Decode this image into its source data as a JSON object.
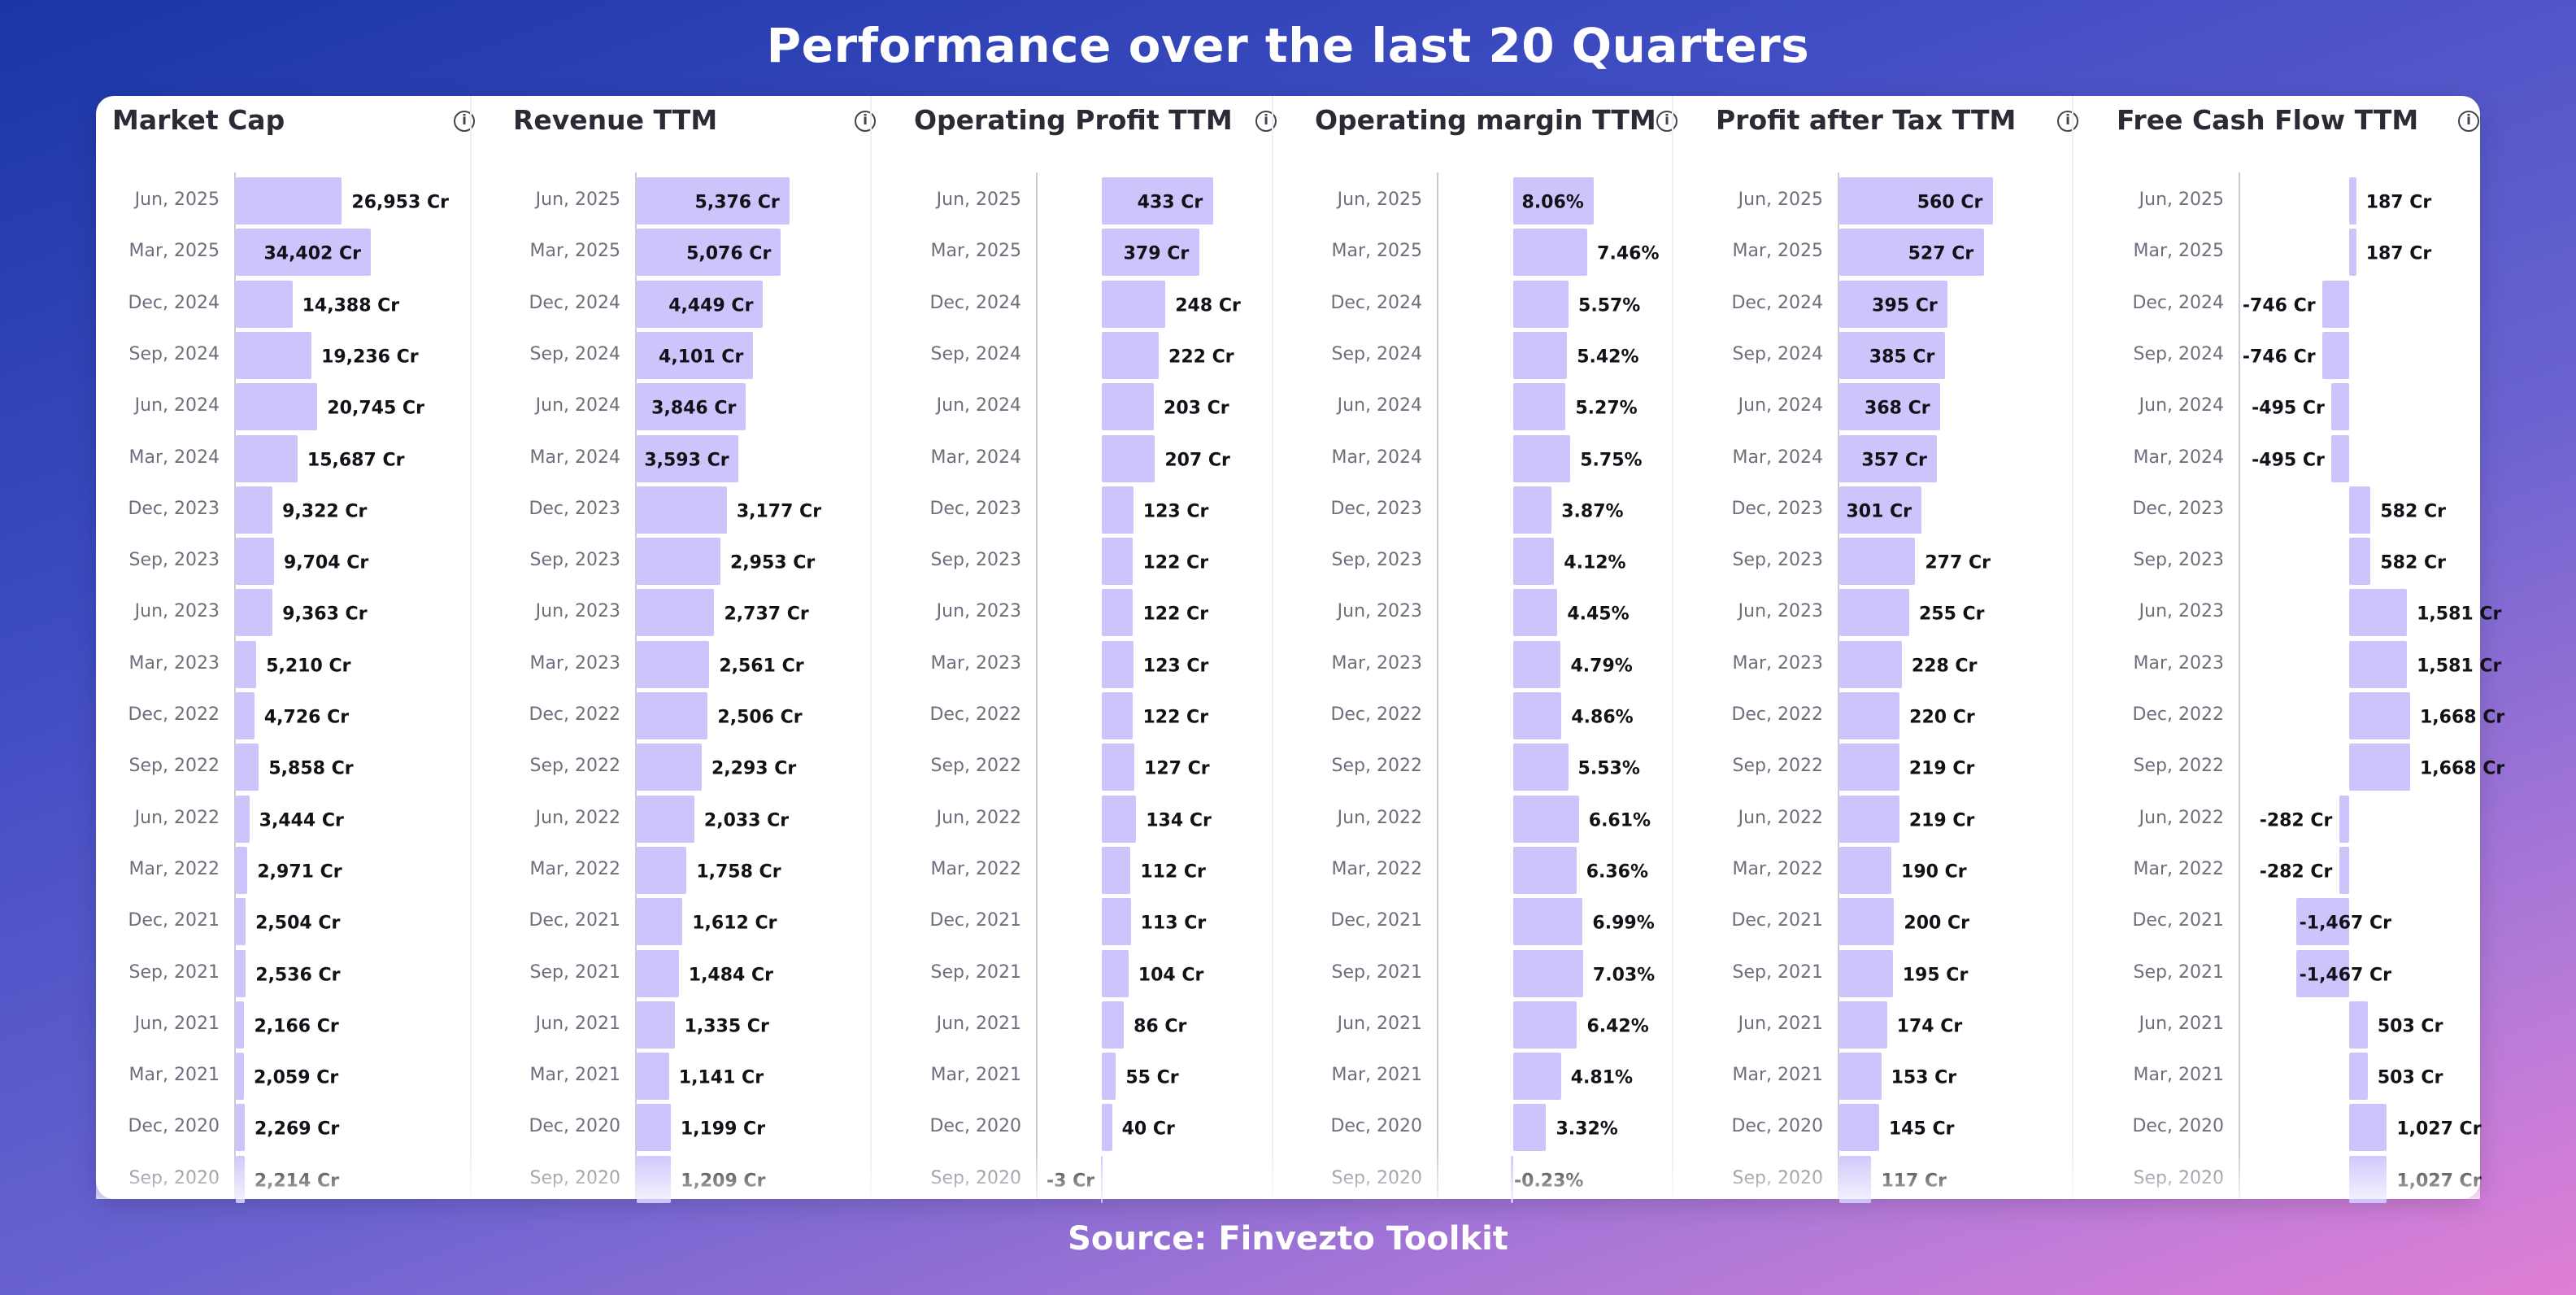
{
  "title": "Performance over the last 20 Quarters",
  "source": "Source: Finvezto Toolkit",
  "colors": {
    "bar": "#cdc4fb",
    "background_start": "#1a36a6",
    "background_end": "#e07fd6"
  },
  "chart_data": [
    {
      "type": "bar",
      "title": "Market Cap",
      "info_icon": "i",
      "categories": [
        "Jun, 2025",
        "Mar, 2025",
        "Dec, 2024",
        "Sep, 2024",
        "Jun, 2024",
        "Mar, 2024",
        "Dec, 2023",
        "Sep, 2023",
        "Jun, 2023",
        "Mar, 2023",
        "Dec, 2022",
        "Sep, 2022",
        "Jun, 2022",
        "Mar, 2022",
        "Dec, 2021",
        "Sep, 2021",
        "Jun, 2021",
        "Mar, 2021",
        "Dec, 2020",
        "Sep, 2020"
      ],
      "values": [
        26953,
        34402,
        14388,
        19236,
        20745,
        15687,
        9322,
        9704,
        9363,
        5210,
        4726,
        5858,
        3444,
        2971,
        2504,
        2536,
        2166,
        2059,
        2269,
        2214
      ],
      "labels": [
        "26,953 Cr",
        "34,402 Cr",
        "14,388 Cr",
        "19,236 Cr",
        "20,745 Cr",
        "15,687 Cr",
        "9,322 Cr",
        "9,704 Cr",
        "9,363 Cr",
        "5,210 Cr",
        "4,726 Cr",
        "5,858 Cr",
        "3,444 Cr",
        "2,971 Cr",
        "2,504 Cr",
        "2,536 Cr",
        "2,166 Cr",
        "2,059 Cr",
        "2,269 Cr",
        "2,214 Cr"
      ],
      "xlim": [
        0,
        62000
      ],
      "unit": "Cr"
    },
    {
      "type": "bar",
      "title": "Revenue TTM",
      "info_icon": "i",
      "categories": [
        "Jun, 2025",
        "Mar, 2025",
        "Dec, 2024",
        "Sep, 2024",
        "Jun, 2024",
        "Mar, 2024",
        "Dec, 2023",
        "Sep, 2023",
        "Jun, 2023",
        "Mar, 2023",
        "Dec, 2022",
        "Sep, 2022",
        "Jun, 2022",
        "Mar, 2022",
        "Dec, 2021",
        "Sep, 2021",
        "Jun, 2021",
        "Mar, 2021",
        "Dec, 2020",
        "Sep, 2020"
      ],
      "values": [
        5376,
        5076,
        4449,
        4101,
        3846,
        3593,
        3177,
        2953,
        2737,
        2561,
        2506,
        2293,
        2033,
        1758,
        1612,
        1484,
        1335,
        1141,
        1199,
        1209
      ],
      "labels": [
        "5,376 Cr",
        "5,076 Cr",
        "4,449 Cr",
        "4,101 Cr",
        "3,846 Cr",
        "3,593 Cr",
        "3,177 Cr",
        "2,953 Cr",
        "2,737 Cr",
        "2,561 Cr",
        "2,506 Cr",
        "2,293 Cr",
        "2,033 Cr",
        "1,758 Cr",
        "1,612 Cr",
        "1,484 Cr",
        "1,335 Cr",
        "1,141 Cr",
        "1,199 Cr",
        "1,209 Cr"
      ],
      "xlim": [
        0,
        8600
      ],
      "unit": "Cr"
    },
    {
      "type": "bar",
      "title": "Operating Profit TTM",
      "info_icon": "i",
      "categories": [
        "Jun, 2025",
        "Mar, 2025",
        "Dec, 2024",
        "Sep, 2024",
        "Jun, 2024",
        "Mar, 2024",
        "Dec, 2023",
        "Sep, 2023",
        "Jun, 2023",
        "Mar, 2023",
        "Dec, 2022",
        "Sep, 2022",
        "Jun, 2022",
        "Mar, 2022",
        "Dec, 2021",
        "Sep, 2021",
        "Jun, 2021",
        "Mar, 2021",
        "Dec, 2020",
        "Sep, 2020"
      ],
      "values": [
        433,
        379,
        248,
        222,
        203,
        207,
        123,
        122,
        122,
        123,
        122,
        127,
        134,
        112,
        113,
        104,
        86,
        55,
        40,
        -3
      ],
      "labels": [
        "433 Cr",
        "379 Cr",
        "248 Cr",
        "222 Cr",
        "203 Cr",
        "207 Cr",
        "123 Cr",
        "122 Cr",
        "122 Cr",
        "123 Cr",
        "122 Cr",
        "127 Cr",
        "134 Cr",
        "112 Cr",
        "113 Cr",
        "104 Cr",
        "86 Cr",
        "55 Cr",
        "40 Cr",
        "-3 Cr"
      ],
      "xlim": [
        -250,
        700
      ],
      "unit": "Cr"
    },
    {
      "type": "bar",
      "title": "Operating margin TTM",
      "info_icon": "i",
      "categories": [
        "Jun, 2025",
        "Mar, 2025",
        "Dec, 2024",
        "Sep, 2024",
        "Jun, 2024",
        "Mar, 2024",
        "Dec, 2023",
        "Sep, 2023",
        "Jun, 2023",
        "Mar, 2023",
        "Dec, 2022",
        "Sep, 2022",
        "Jun, 2022",
        "Mar, 2022",
        "Dec, 2021",
        "Sep, 2021",
        "Jun, 2021",
        "Mar, 2021",
        "Dec, 2020",
        "Sep, 2020"
      ],
      "values": [
        8.06,
        7.46,
        5.57,
        5.42,
        5.27,
        5.75,
        3.87,
        4.12,
        4.45,
        4.79,
        4.86,
        5.53,
        6.61,
        6.36,
        6.99,
        7.03,
        6.42,
        4.81,
        3.32,
        -0.23
      ],
      "labels": [
        "8.06%",
        "7.46%",
        "5.57%",
        "5.42%",
        "5.27%",
        "5.75%",
        "3.87%",
        "4.12%",
        "4.45%",
        "4.79%",
        "4.86%",
        "5.53%",
        "6.61%",
        "6.36%",
        "6.99%",
        "7.03%",
        "6.42%",
        "4.81%",
        "3.32%",
        "-0.23%"
      ],
      "xlim": [
        -7.5,
        17
      ],
      "unit": "%"
    },
    {
      "type": "bar",
      "title": "Profit after Tax TTM",
      "info_icon": "i",
      "categories": [
        "Jun, 2025",
        "Mar, 2025",
        "Dec, 2024",
        "Sep, 2024",
        "Jun, 2024",
        "Mar, 2024",
        "Dec, 2023",
        "Sep, 2023",
        "Jun, 2023",
        "Mar, 2023",
        "Dec, 2022",
        "Sep, 2022",
        "Jun, 2022",
        "Mar, 2022",
        "Dec, 2021",
        "Sep, 2021",
        "Jun, 2021",
        "Mar, 2021",
        "Dec, 2020",
        "Sep, 2020"
      ],
      "values": [
        560,
        527,
        395,
        385,
        368,
        357,
        301,
        277,
        255,
        228,
        220,
        219,
        219,
        190,
        200,
        195,
        174,
        153,
        145,
        117
      ],
      "labels": [
        "560 Cr",
        "527 Cr",
        "395 Cr",
        "385 Cr",
        "368 Cr",
        "357 Cr",
        "301 Cr",
        "277 Cr",
        "255 Cr",
        "228 Cr",
        "220 Cr",
        "219 Cr",
        "219 Cr",
        "190 Cr",
        "200 Cr",
        "195 Cr",
        "174 Cr",
        "153 Cr",
        "145 Cr",
        "117 Cr"
      ],
      "xlim": [
        0,
        890
      ],
      "unit": "Cr"
    },
    {
      "type": "bar",
      "title": "Free Cash Flow TTM",
      "info_icon": "i",
      "categories": [
        "Jun, 2025",
        "Mar, 2025",
        "Dec, 2024",
        "Sep, 2024",
        "Jun, 2024",
        "Mar, 2024",
        "Dec, 2023",
        "Sep, 2023",
        "Jun, 2023",
        "Mar, 2023",
        "Dec, 2022",
        "Sep, 2022",
        "Jun, 2022",
        "Mar, 2022",
        "Dec, 2021",
        "Sep, 2021",
        "Jun, 2021",
        "Mar, 2021",
        "Dec, 2020",
        "Sep, 2020"
      ],
      "values": [
        187,
        187,
        -746,
        -746,
        -495,
        -495,
        582,
        582,
        1581,
        1581,
        1668,
        1668,
        -282,
        -282,
        -1467,
        -1467,
        503,
        503,
        1027,
        1027
      ],
      "labels": [
        "187 Cr",
        "187 Cr",
        "-746 Cr",
        "-746 Cr",
        "-495 Cr",
        "-495 Cr",
        "582 Cr",
        "582 Cr",
        "1,581 Cr",
        "1,581 Cr",
        "1,668 Cr",
        "1,668 Cr",
        "-282 Cr",
        "-282 Cr",
        "-1,467 Cr",
        "-1,467 Cr",
        "503 Cr",
        "503 Cr",
        "1,027 Cr",
        "1,027 Cr"
      ],
      "xlim": [
        -3000,
        3700
      ],
      "unit": "Cr"
    }
  ]
}
